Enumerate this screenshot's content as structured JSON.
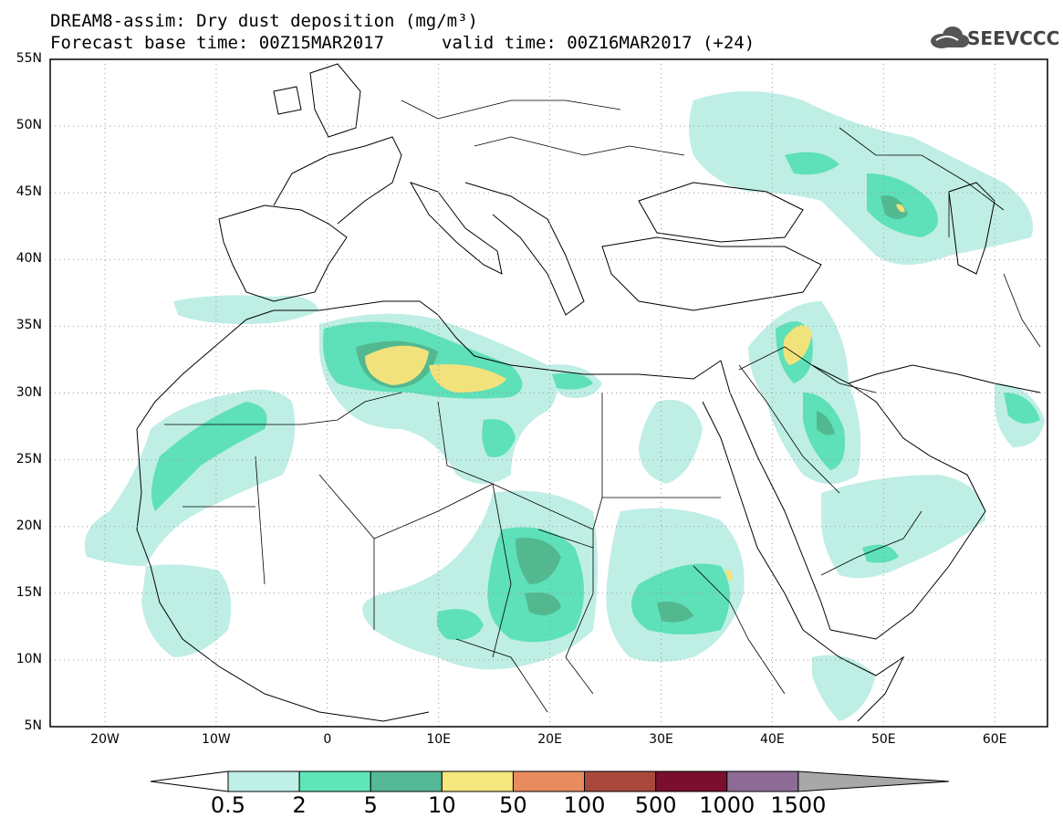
{
  "header": {
    "title_line1": "DREAM8-assim: Dry dust deposition (mg/m³)",
    "title_line2": "Forecast base time: 00Z15MAR2017",
    "valid_time": "valid time: 00Z16MAR2017 (+24)",
    "logo_text": "SEEVCCC"
  },
  "map": {
    "lat_labels": [
      "55N",
      "50N",
      "45N",
      "40N",
      "35N",
      "30N",
      "25N",
      "20N",
      "15N",
      "10N",
      "5N"
    ],
    "lon_labels": [
      "20W",
      "10W",
      "0",
      "10E",
      "20E",
      "30E",
      "40E",
      "50E",
      "60E"
    ],
    "colors": {
      "ocean": "#ffffff",
      "land_outline": "#000000",
      "level_0_5": "#bfeee5",
      "level_2": "#5ee0b8",
      "level_5": "#52b88f",
      "level_10": "#f2e27c"
    }
  },
  "colorbar": {
    "labels": [
      "0.5",
      "2",
      "5",
      "10",
      "50",
      "100",
      "500",
      "1000",
      "1500"
    ],
    "colors": [
      "#bff0e8",
      "#5ee6b8",
      "#55b896",
      "#f5e67d",
      "#e88c60",
      "#a8483c",
      "#7a0e2e",
      "#8e6b96",
      "#a8a8a8"
    ]
  }
}
